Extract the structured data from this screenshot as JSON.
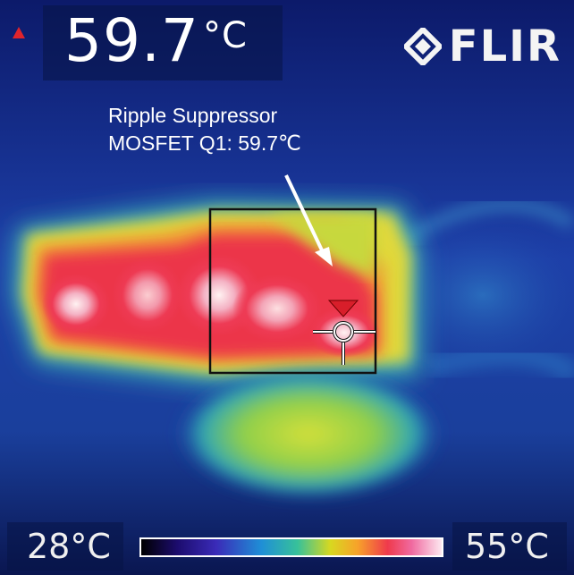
{
  "camera": {
    "max_indicator": "max-triangle-icon",
    "reading_value": "59.7",
    "reading_unit": "°C",
    "brand": "FLIR",
    "brand_icon": "flir-diamond-icon"
  },
  "annotation": {
    "line1": "Ripple Suppressor",
    "line2": "MOSFET Q1: 59.7℃"
  },
  "scale": {
    "min_label": "28°C",
    "max_label": "55°C",
    "min_value": 28,
    "max_value": 55
  },
  "colors": {
    "background": "#0b1860",
    "hot_spot": "#ef3a4c",
    "marker": "#e0242c",
    "text": "#ffffff"
  }
}
